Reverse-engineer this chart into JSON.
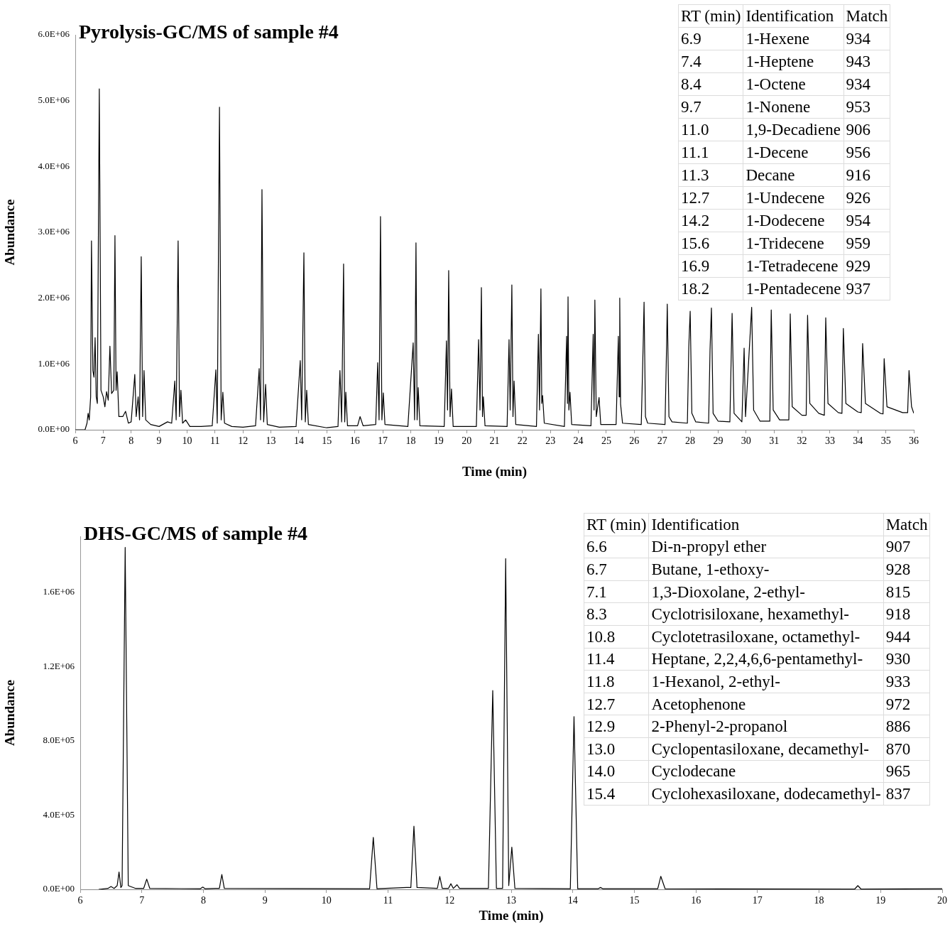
{
  "chart_data": [
    {
      "type": "line",
      "title": "Pyrolysis-GC/MS of sample #4",
      "xlabel": "Time (min)",
      "ylabel": "Abundance",
      "grid": false,
      "legend": false,
      "marker": "none",
      "line_style": "solid",
      "xlim": [
        6,
        36
      ],
      "xticks": [
        6,
        7,
        8,
        9,
        10,
        11,
        12,
        13,
        14,
        15,
        16,
        17,
        18,
        19,
        20,
        21,
        22,
        23,
        24,
        25,
        26,
        27,
        28,
        29,
        30,
        31,
        32,
        33,
        34,
        35,
        36
      ],
      "ylim": [
        0,
        6000000
      ],
      "yticks": [
        {
          "value": 0,
          "label": "0.0E+00"
        },
        {
          "value": 1000000,
          "label": "1.0E+06"
        },
        {
          "value": 2000000,
          "label": "2.0E+06"
        },
        {
          "value": 3000000,
          "label": "3.0E+06"
        },
        {
          "value": 4000000,
          "label": "4.0E+06"
        },
        {
          "value": 5000000,
          "label": "5.0E+06"
        },
        {
          "value": 6000000,
          "label": "6.0E+06"
        }
      ],
      "series": [
        {
          "color": "#000000",
          "x": [
            6.0,
            6.35,
            6.42,
            6.46,
            6.5,
            6.55,
            6.58,
            6.63,
            6.67,
            6.71,
            6.75,
            6.79,
            6.86,
            6.92,
            7.0,
            7.06,
            7.12,
            7.18,
            7.24,
            7.3,
            7.38,
            7.42,
            7.46,
            7.5,
            7.56,
            7.7,
            7.8,
            7.9,
            8.0,
            8.13,
            8.18,
            8.25,
            8.3,
            8.36,
            8.41,
            8.46,
            8.52,
            8.7,
            9.0,
            9.3,
            9.45,
            9.56,
            9.61,
            9.68,
            9.73,
            9.78,
            9.84,
            9.95,
            10.1,
            10.5,
            10.9,
            11.03,
            11.08,
            11.16,
            11.22,
            11.28,
            11.34,
            11.6,
            12.0,
            12.45,
            12.58,
            12.63,
            12.68,
            12.74,
            12.81,
            12.87,
            13.3,
            13.9,
            14.05,
            14.1,
            14.18,
            14.23,
            14.28,
            14.34,
            15.0,
            15.4,
            15.47,
            15.53,
            15.6,
            15.64,
            15.68,
            15.74,
            16.1,
            16.19,
            16.3,
            16.75,
            16.82,
            16.87,
            16.92,
            16.97,
            17.02,
            17.08,
            17.9,
            18.09,
            18.14,
            18.19,
            18.23,
            18.27,
            18.33,
            19.2,
            19.28,
            19.32,
            19.36,
            19.41,
            19.46,
            19.52,
            20.35,
            20.43,
            20.48,
            20.53,
            20.57,
            20.6,
            20.66,
            21.45,
            21.52,
            21.56,
            21.62,
            21.66,
            21.7,
            21.76,
            22.5,
            22.57,
            22.61,
            22.66,
            22.69,
            22.72,
            22.78,
            23.5,
            23.58,
            23.61,
            23.63,
            23.66,
            23.7,
            23.76,
            24.45,
            24.53,
            24.56,
            24.59,
            24.64,
            24.74,
            24.8,
            25.35,
            25.43,
            25.46,
            25.48,
            25.51,
            25.58,
            26.25,
            26.32,
            26.35,
            26.4,
            26.48,
            27.1,
            27.16,
            27.18,
            27.24,
            27.35,
            27.9,
            27.95,
            28.0,
            28.06,
            28.2,
            28.66,
            28.71,
            28.76,
            28.82,
            29.0,
            29.42,
            29.5,
            29.57,
            29.85,
            29.93,
            29.98,
            30.2,
            30.27,
            30.5,
            30.85,
            30.9,
            30.97,
            31.2,
            31.53,
            31.58,
            31.65,
            32.0,
            32.15,
            32.2,
            32.28,
            32.6,
            32.8,
            32.85,
            32.93,
            33.3,
            33.43,
            33.48,
            33.57,
            34.0,
            34.12,
            34.17,
            34.27,
            34.8,
            34.9,
            34.94,
            35.04,
            35.6,
            35.78,
            35.83,
            35.92,
            36.0
          ],
          "values": [
            0,
            0,
            100000,
            250000,
            150000,
            500000,
            2870000,
            900000,
            800000,
            1400000,
            500000,
            400000,
            5180000,
            600000,
            500000,
            350000,
            580000,
            450000,
            1270000,
            550000,
            600000,
            2950000,
            600000,
            880000,
            200000,
            200000,
            280000,
            100000,
            120000,
            840000,
            200000,
            500000,
            150000,
            2630000,
            200000,
            900000,
            150000,
            80000,
            50000,
            120000,
            100000,
            740000,
            150000,
            2870000,
            200000,
            600000,
            100000,
            150000,
            50000,
            50000,
            60000,
            910000,
            100000,
            4900000,
            150000,
            570000,
            100000,
            50000,
            40000,
            60000,
            930000,
            150000,
            3650000,
            120000,
            690000,
            80000,
            40000,
            50000,
            1050000,
            150000,
            2690000,
            120000,
            600000,
            80000,
            30000,
            50000,
            900000,
            120000,
            2520000,
            120000,
            570000,
            60000,
            60000,
            200000,
            60000,
            80000,
            1020000,
            150000,
            3240000,
            150000,
            560000,
            80000,
            50000,
            1320000,
            150000,
            2840000,
            150000,
            640000,
            60000,
            50000,
            1350000,
            300000,
            2420000,
            200000,
            620000,
            50000,
            50000,
            1370000,
            300000,
            2160000,
            200000,
            500000,
            60000,
            50000,
            1370000,
            300000,
            2200000,
            200000,
            740000,
            80000,
            50000,
            1450000,
            300000,
            2140000,
            400000,
            520000,
            100000,
            50000,
            1420000,
            400000,
            2020000,
            300000,
            570000,
            80000,
            60000,
            1450000,
            300000,
            1970000,
            200000,
            490000,
            80000,
            80000,
            1420000,
            500000,
            2000000,
            390000,
            100000,
            80000,
            1330000,
            1940000,
            200000,
            100000,
            80000,
            1360000,
            1910000,
            200000,
            120000,
            100000,
            1260000,
            1800000,
            250000,
            120000,
            100000,
            1210000,
            1850000,
            250000,
            130000,
            120000,
            1770000,
            250000,
            120000,
            1240000,
            200000,
            1860000,
            300000,
            130000,
            130000,
            1820000,
            300000,
            150000,
            150000,
            1760000,
            350000,
            220000,
            220000,
            1740000,
            400000,
            250000,
            220000,
            1700000,
            400000,
            260000,
            250000,
            1540000,
            400000,
            270000,
            260000,
            1310000,
            400000,
            250000,
            240000,
            1080000,
            350000,
            260000,
            260000,
            900000,
            350000,
            250000
          ]
        }
      ]
    },
    {
      "type": "other",
      "annotations": [
        "RT (min)",
        "Identification",
        "Match",
        "6.9",
        "1-Hexene",
        "934",
        "7.4",
        "1-Heptene",
        "943",
        "8.4",
        "1-Octene",
        "934",
        "9.7",
        "1-Nonene",
        "953",
        "11.0",
        "1,9-Decadiene",
        "906",
        "11.1",
        "1-Decene",
        "956",
        "11.3",
        "Decane",
        "916",
        "12.7",
        "1-Undecene",
        "926",
        "14.2",
        "1-Dodecene",
        "954",
        "15.6",
        "1-Tridecene",
        "959",
        "16.9",
        "1-Tetradecene",
        "929",
        "18.2",
        "1-Pentadecene",
        "937"
      ]
    },
    {
      "type": "line",
      "title": "DHS-GC/MS of sample #4",
      "xlabel": "Time (min)",
      "ylabel": "Abundance",
      "grid": false,
      "legend": false,
      "marker": "none",
      "line_style": "solid",
      "xlim": [
        6,
        20
      ],
      "xticks": [
        6,
        7,
        8,
        9,
        10,
        11,
        12,
        13,
        14,
        15,
        16,
        17,
        18,
        19,
        20
      ],
      "ylim": [
        0,
        1900000
      ],
      "yticks": [
        {
          "value": 0,
          "label": "0.0E+00"
        },
        {
          "value": 400000,
          "label": "4.0E+05"
        },
        {
          "value": 800000,
          "label": "8.0E+05"
        },
        {
          "value": 1200000,
          "label": "1.2E+06"
        },
        {
          "value": 1600000,
          "label": "1.6E+06"
        }
      ],
      "series": [
        {
          "color": "#000000",
          "x": [
            6.3,
            6.45,
            6.5,
            6.55,
            6.6,
            6.63,
            6.66,
            6.68,
            6.73,
            6.78,
            6.9,
            7.03,
            7.08,
            7.13,
            7.95,
            7.99,
            8.03,
            8.2,
            8.26,
            8.3,
            8.34,
            10.7,
            10.76,
            10.82,
            11.3,
            11.37,
            11.42,
            11.47,
            11.8,
            11.84,
            11.88,
            11.98,
            12.02,
            12.06,
            12.12,
            12.16,
            12.63,
            12.7,
            12.76,
            12.86,
            12.91,
            12.96,
            13.01,
            13.06,
            13.96,
            14.02,
            14.08,
            14.41,
            14.45,
            14.49,
            15.38,
            15.43,
            15.5,
            18.58,
            18.63,
            18.68,
            20.0
          ],
          "values": [
            0,
            5000,
            15000,
            5000,
            20000,
            93000,
            10000,
            20000,
            1840000,
            20000,
            5000,
            5000,
            55000,
            5000,
            3000,
            12000,
            3000,
            5000,
            5000,
            80000,
            5000,
            3000,
            280000,
            3000,
            10000,
            10000,
            340000,
            10000,
            5000,
            69000,
            5000,
            5000,
            30000,
            5000,
            25000,
            5000,
            5000,
            1070000,
            5000,
            5000,
            1780000,
            20000,
            227000,
            5000,
            3000,
            930000,
            3000,
            3000,
            10000,
            3000,
            3000,
            70000,
            3000,
            2000,
            20000,
            2000,
            3000
          ]
        }
      ]
    },
    {
      "type": "other",
      "annotations": [
        "RT (min)",
        "Identification",
        "Match",
        "6.6",
        "Di-n-propyl ether",
        "907",
        "6.7",
        "Butane, 1-ethoxy-",
        "928",
        "7.1",
        "1,3-Dioxolane, 2-ethyl-",
        "815",
        "8.3",
        "Cyclotrisiloxane, hexamethyl-",
        "918",
        "10.8",
        "Cyclotetrasiloxane, octamethyl-",
        "944",
        "11.4",
        "Heptane, 2,2,4,6,6-pentamethyl-",
        "930",
        "11.8",
        "1-Hexanol, 2-ethyl-",
        "933",
        "12.7",
        "Acetophenone",
        "972",
        "12.9",
        "2-Phenyl-2-propanol",
        "886",
        "13.0",
        "Cyclopentasiloxane, decamethyl-",
        "870",
        "14.0",
        "Cyclodecane",
        "965",
        "15.4",
        "Cyclohexasiloxane, dodecamethyl-",
        "837"
      ]
    }
  ]
}
